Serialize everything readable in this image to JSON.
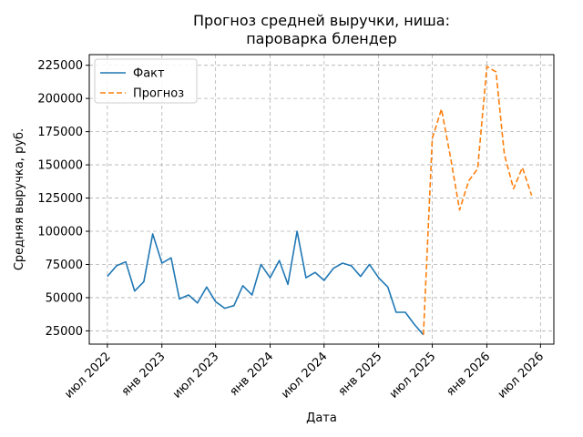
{
  "chart_data": {
    "type": "line",
    "title": [
      "Прогноз средней выручки, ниша:",
      "пароварка блендер"
    ],
    "xlabel": "Дата",
    "ylabel": "Средняя выручка, руб.",
    "x_ticks": [
      {
        "label": "июл 2022",
        "date": "2022-07-01"
      },
      {
        "label": "янв 2023",
        "date": "2023-01-01"
      },
      {
        "label": "июл 2023",
        "date": "2023-07-01"
      },
      {
        "label": "янв 2024",
        "date": "2024-01-01"
      },
      {
        "label": "июл 2024",
        "date": "2024-07-01"
      },
      {
        "label": "янв 2025",
        "date": "2025-01-01"
      },
      {
        "label": "июл 2025",
        "date": "2025-07-01"
      },
      {
        "label": "янв 2026",
        "date": "2026-01-01"
      },
      {
        "label": "июл 2026",
        "date": "2026-07-01"
      }
    ],
    "y_ticks": [
      25000,
      50000,
      75000,
      100000,
      125000,
      150000,
      175000,
      200000,
      225000
    ],
    "xlim": [
      "2022-05-01",
      "2026-08-15"
    ],
    "ylim": [
      15000,
      233000
    ],
    "grid": true,
    "legend_position": "top-left",
    "series": [
      {
        "name": "Факт",
        "color": "#1f77b4",
        "style": "solid",
        "points": [
          {
            "x": "2022-07-01",
            "y": 66000
          },
          {
            "x": "2022-08-01",
            "y": 74000
          },
          {
            "x": "2022-09-01",
            "y": 77000
          },
          {
            "x": "2022-10-01",
            "y": 55000
          },
          {
            "x": "2022-11-01",
            "y": 62000
          },
          {
            "x": "2022-12-01",
            "y": 98000
          },
          {
            "x": "2023-01-01",
            "y": 76000
          },
          {
            "x": "2023-02-01",
            "y": 80000
          },
          {
            "x": "2023-03-01",
            "y": 49000
          },
          {
            "x": "2023-04-01",
            "y": 52000
          },
          {
            "x": "2023-05-01",
            "y": 46000
          },
          {
            "x": "2023-06-01",
            "y": 58000
          },
          {
            "x": "2023-07-01",
            "y": 47000
          },
          {
            "x": "2023-08-01",
            "y": 42000
          },
          {
            "x": "2023-09-01",
            "y": 44000
          },
          {
            "x": "2023-10-01",
            "y": 59000
          },
          {
            "x": "2023-11-01",
            "y": 52000
          },
          {
            "x": "2023-12-01",
            "y": 75000
          },
          {
            "x": "2024-01-01",
            "y": 65000
          },
          {
            "x": "2024-02-01",
            "y": 78000
          },
          {
            "x": "2024-03-01",
            "y": 60000
          },
          {
            "x": "2024-04-01",
            "y": 100000
          },
          {
            "x": "2024-05-01",
            "y": 65000
          },
          {
            "x": "2024-06-01",
            "y": 69000
          },
          {
            "x": "2024-07-01",
            "y": 63000
          },
          {
            "x": "2024-08-01",
            "y": 72000
          },
          {
            "x": "2024-09-01",
            "y": 76000
          },
          {
            "x": "2024-10-01",
            "y": 74000
          },
          {
            "x": "2024-11-01",
            "y": 66000
          },
          {
            "x": "2024-12-01",
            "y": 75000
          },
          {
            "x": "2025-01-01",
            "y": 65000
          },
          {
            "x": "2025-02-01",
            "y": 58000
          },
          {
            "x": "2025-03-01",
            "y": 39000
          },
          {
            "x": "2025-04-01",
            "y": 39000
          },
          {
            "x": "2025-05-01",
            "y": 30000
          },
          {
            "x": "2025-06-01",
            "y": 22000
          }
        ]
      },
      {
        "name": "Прогноз",
        "color": "#ff7f0e",
        "style": "dashed",
        "points": [
          {
            "x": "2025-06-01",
            "y": 22000
          },
          {
            "x": "2025-07-01",
            "y": 170000
          },
          {
            "x": "2025-08-01",
            "y": 192000
          },
          {
            "x": "2025-09-01",
            "y": 155000
          },
          {
            "x": "2025-10-01",
            "y": 116000
          },
          {
            "x": "2025-11-01",
            "y": 138000
          },
          {
            "x": "2025-12-01",
            "y": 147000
          },
          {
            "x": "2026-01-01",
            "y": 224000
          },
          {
            "x": "2026-02-01",
            "y": 220000
          },
          {
            "x": "2026-03-01",
            "y": 158000
          },
          {
            "x": "2026-04-01",
            "y": 132000
          },
          {
            "x": "2026-05-01",
            "y": 148000
          },
          {
            "x": "2026-06-01",
            "y": 127000
          }
        ]
      }
    ]
  }
}
